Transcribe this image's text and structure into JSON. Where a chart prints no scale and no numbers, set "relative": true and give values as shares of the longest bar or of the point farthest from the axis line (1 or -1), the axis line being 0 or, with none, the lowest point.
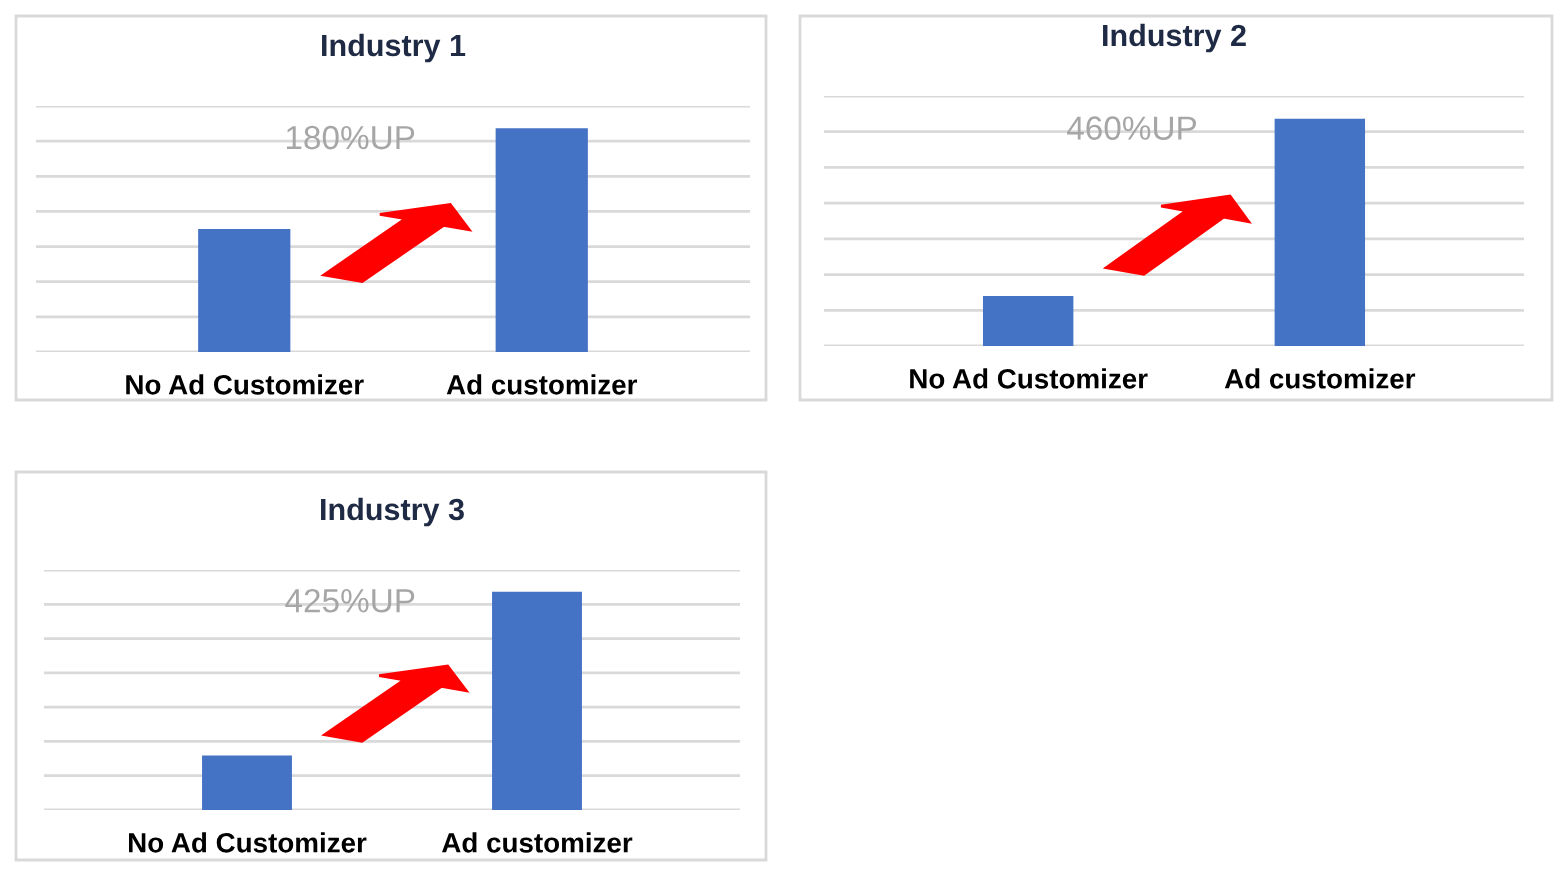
{
  "chart_data": [
    {
      "type": "bar",
      "title": "Industry 1",
      "categories": [
        "No Ad Customizer",
        "Ad customizer"
      ],
      "values": [
        0.55,
        1
      ],
      "color": "#4472c4",
      "relative": true,
      "grid": "y",
      "annotations": [
        "180%UP"
      ]
    },
    {
      "type": "bar",
      "title": "Industry 2",
      "categories": [
        "No Ad Customizer",
        "Ad customizer"
      ],
      "values": [
        0.22,
        1
      ],
      "color": "#4472c4",
      "relative": true,
      "grid": "y",
      "annotations": [
        "460%UP"
      ]
    },
    {
      "type": "bar",
      "title": "Industry 3",
      "categories": [
        "No Ad Customizer",
        "Ad customizer"
      ],
      "values": [
        0.25,
        1
      ],
      "color": "#4472c4",
      "relative": true,
      "grid": "y",
      "annotations": [
        "425%UP"
      ]
    }
  ]
}
